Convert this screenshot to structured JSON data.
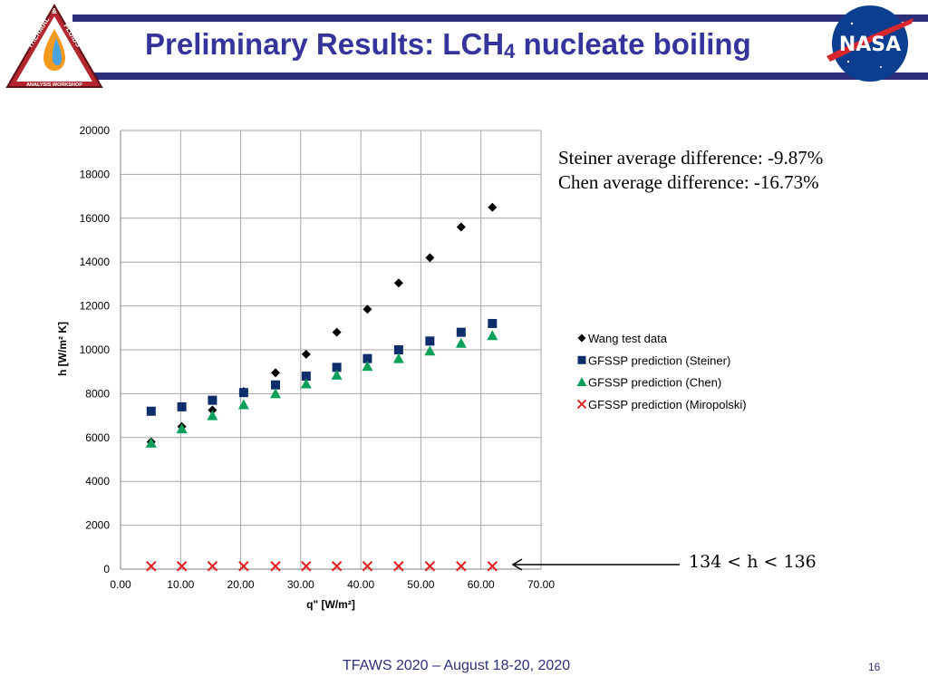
{
  "slide": {
    "title_main": "Preliminary Results:  LCH",
    "title_sub": "4",
    "title_tail": " nucleate boiling",
    "footer": "TFAWS 2020 – August 18-20, 2020",
    "page_number": "16"
  },
  "logos": {
    "tfaws": {
      "top_text": "THERMAL",
      "amp": "&",
      "right_text": "FLUIDS",
      "bottom_text": "ANALYSIS WORKSHOP"
    },
    "nasa": {
      "text": "NASA"
    }
  },
  "annotations": {
    "steiner_diff": "Steiner average difference:  -9.87%",
    "chen_diff": "Chen average difference:  -16.73%",
    "inequality": "134 < h < 136"
  },
  "colors": {
    "header_navy": "#2d2f7a",
    "title_blue": "#34349c",
    "wang": "#000000",
    "steiner": "#0d2d6b",
    "chen": "#0aa05a",
    "miropolski": "#e02020"
  },
  "chart_data": {
    "type": "scatter",
    "xlabel": "q\" [W/m²]",
    "ylabel": "h [W/m² K]",
    "xlim": [
      0,
      70
    ],
    "ylim": [
      0,
      20000
    ],
    "xticks": [
      "0.00",
      "10.00",
      "20.00",
      "30.00",
      "40.00",
      "50.00",
      "60.00",
      "70.00"
    ],
    "yticks": [
      "0",
      "2000",
      "4000",
      "6000",
      "8000",
      "10000",
      "12000",
      "14000",
      "16000",
      "18000",
      "20000"
    ],
    "grid": true,
    "legend_position": "right",
    "series": [
      {
        "name": "Wang test data",
        "marker": "diamond",
        "x": [
          5.1,
          10.2,
          15.3,
          20.5,
          25.8,
          30.9,
          36.0,
          41.1,
          46.3,
          51.5,
          56.7,
          61.9
        ],
        "y": [
          5800,
          6500,
          7250,
          8100,
          8950,
          9800,
          10800,
          11850,
          13050,
          14200,
          15600,
          16500
        ]
      },
      {
        "name": "GFSSP prediction (Steiner)",
        "marker": "square",
        "x": [
          5.1,
          10.2,
          15.3,
          20.5,
          25.8,
          30.9,
          36.0,
          41.1,
          46.3,
          51.5,
          56.7,
          61.9
        ],
        "y": [
          7200,
          7400,
          7700,
          8050,
          8400,
          8800,
          9200,
          9600,
          10000,
          10400,
          10800,
          11200
        ]
      },
      {
        "name": "GFSSP prediction (Chen)",
        "marker": "triangle",
        "x": [
          5.1,
          10.2,
          15.3,
          20.5,
          25.8,
          30.9,
          36.0,
          41.1,
          46.3,
          51.5,
          56.7,
          61.9
        ],
        "y": [
          5750,
          6400,
          7000,
          7500,
          8000,
          8450,
          8850,
          9250,
          9600,
          9950,
          10300,
          10650
        ]
      },
      {
        "name": "GFSSP prediction (Miropolski)",
        "marker": "cross",
        "x": [
          5.1,
          10.2,
          15.3,
          20.5,
          25.8,
          30.9,
          36.0,
          41.1,
          46.3,
          51.5,
          56.7,
          61.9
        ],
        "y": [
          135,
          135,
          135,
          135,
          135,
          135,
          135,
          135,
          135,
          135,
          135,
          135
        ]
      }
    ]
  }
}
